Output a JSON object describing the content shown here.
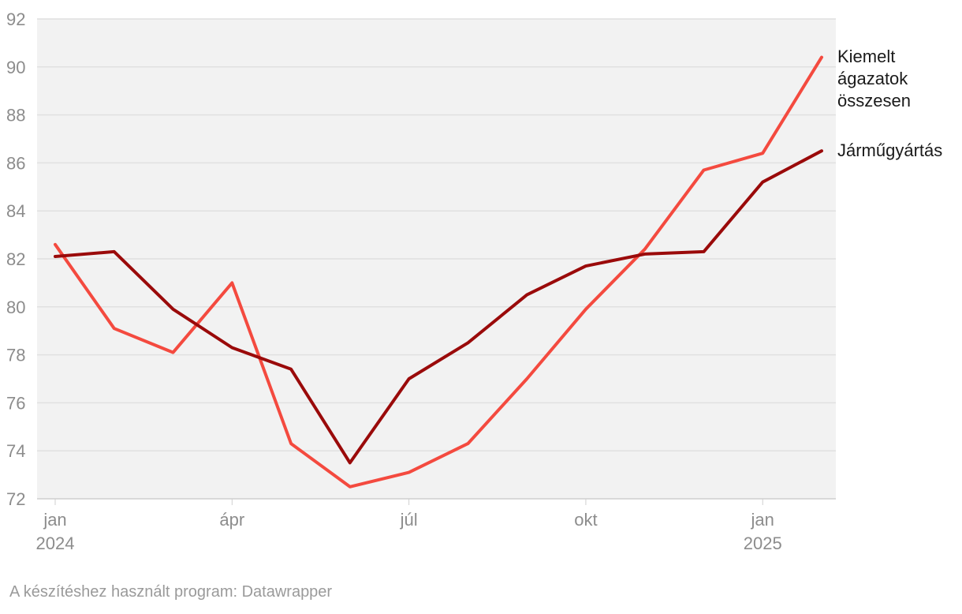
{
  "chart_data": {
    "type": "line",
    "title": "",
    "xlabel": "",
    "ylabel": "",
    "ylim": [
      72,
      92
    ],
    "y_ticks": [
      72,
      74,
      76,
      78,
      80,
      82,
      84,
      86,
      88,
      90,
      92
    ],
    "grid": true,
    "x_ticks": [
      {
        "index": 0,
        "label": "jan",
        "sublabel": "2024"
      },
      {
        "index": 3,
        "label": "ápr",
        "sublabel": ""
      },
      {
        "index": 6,
        "label": "júl",
        "sublabel": ""
      },
      {
        "index": 9,
        "label": "okt",
        "sublabel": ""
      },
      {
        "index": 12,
        "label": "jan",
        "sublabel": "2025"
      }
    ],
    "categories": [
      "2024-01",
      "2024-02",
      "2024-03",
      "2024-04",
      "2024-05",
      "2024-06",
      "2024-07",
      "2024-08",
      "2024-09",
      "2024-10",
      "2024-11",
      "2024-12",
      "2025-01",
      "2025-02"
    ],
    "series": [
      {
        "name": "Kiemelt ágazatok összesen",
        "label_lines": [
          "Kiemelt",
          "ágazatok",
          "összesen"
        ],
        "color": "#f44a3f",
        "values": [
          82.6,
          79.1,
          78.1,
          81.0,
          74.3,
          72.5,
          73.1,
          74.3,
          77.0,
          79.9,
          82.4,
          85.7,
          86.4,
          90.4
        ]
      },
      {
        "name": "Járműgyártás",
        "label_lines": [
          "Járműgyártás"
        ],
        "color": "#9a0a0a",
        "values": [
          82.1,
          82.3,
          79.9,
          78.3,
          77.4,
          73.5,
          77.0,
          78.5,
          80.5,
          81.7,
          82.2,
          82.3,
          85.2,
          86.5
        ]
      }
    ]
  },
  "footer": {
    "credit": "A készítéshez használt program: Datawrapper"
  }
}
